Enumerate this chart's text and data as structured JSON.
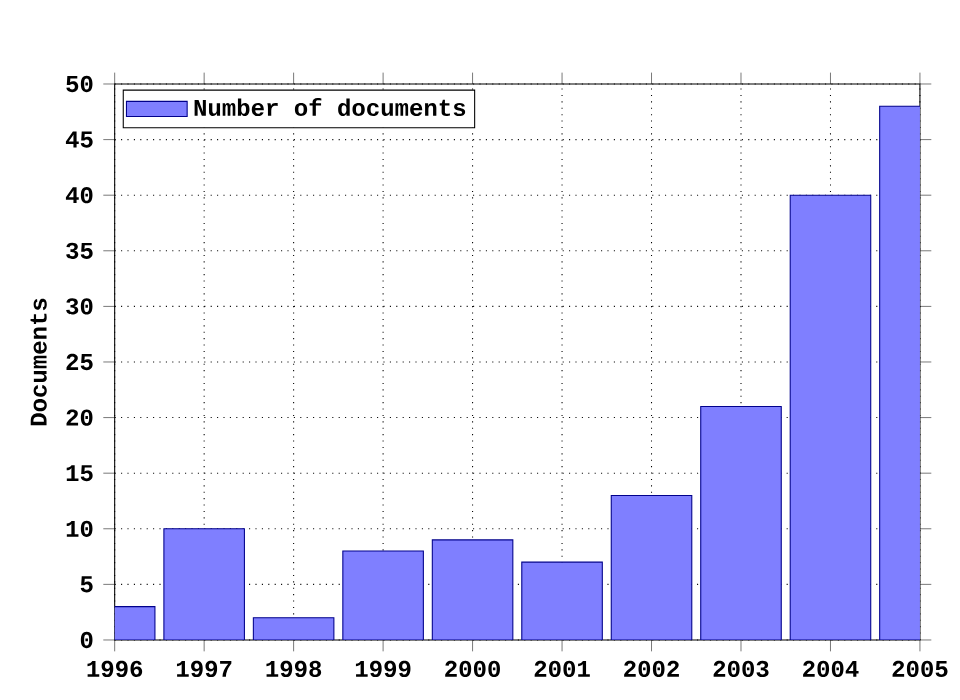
{
  "chart_data": {
    "type": "bar",
    "ylabel": "Documents",
    "x": [
      1996,
      1997,
      1998,
      1999,
      2000,
      2001,
      2002,
      2003,
      2004,
      2005
    ],
    "series": [
      {
        "name": "Number of documents",
        "color": "#7f7fff",
        "values": [
          3,
          10,
          2,
          8,
          9,
          7,
          13,
          21,
          40,
          48
        ]
      }
    ],
    "xlim": [
      1996,
      2005
    ],
    "xticks": [
      1996,
      1997,
      1998,
      1999,
      2000,
      2001,
      2002,
      2003,
      2004,
      2005
    ],
    "ylim": [
      0,
      50
    ],
    "yticks": [
      0,
      5,
      10,
      15,
      20,
      25,
      30,
      35,
      40,
      45,
      50
    ],
    "grid": true,
    "legend": "top left"
  }
}
